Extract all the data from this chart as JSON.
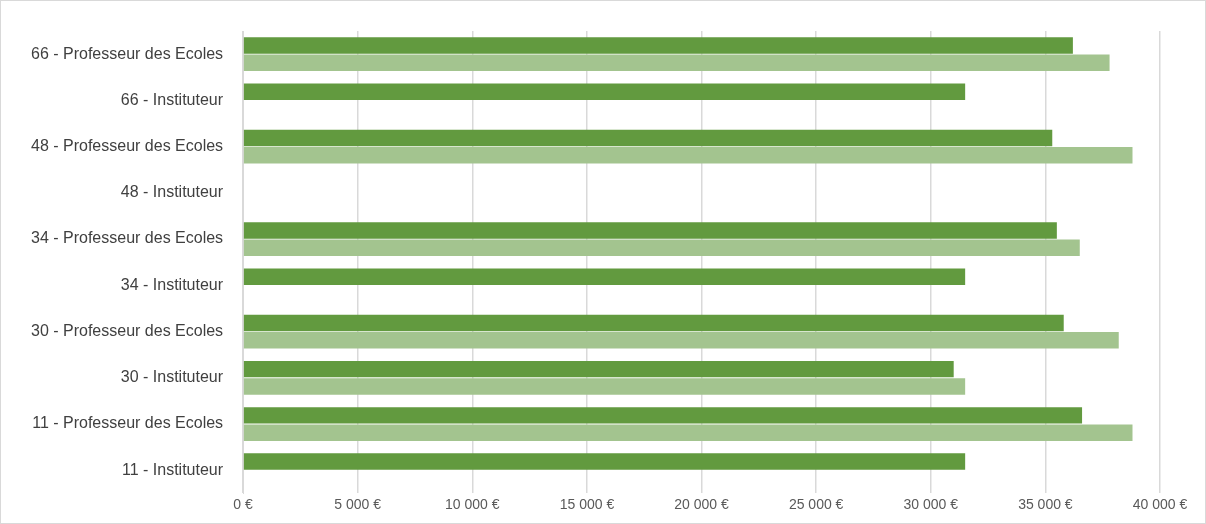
{
  "chart_data": {
    "type": "bar",
    "orientation": "horizontal",
    "categories": [
      "66 - Professeur des Ecoles",
      "66 - Instituteur",
      "48 - Professeur des Ecoles",
      "48 - Instituteur",
      "34 - Professeur des Ecoles",
      "34 - Instituteur",
      "30 - Professeur des Ecoles",
      "30 - Instituteur",
      "11 - Professeur des Ecoles",
      "11 - Instituteur"
    ],
    "series": [
      {
        "color": "#629a3f",
        "values": [
          36200,
          31500,
          35300,
          null,
          35500,
          31500,
          35800,
          31000,
          36600,
          31500
        ]
      },
      {
        "color": "#a3c48f",
        "values": [
          37800,
          null,
          38800,
          null,
          36500,
          null,
          38200,
          31500,
          38800,
          null
        ]
      }
    ],
    "xlim": [
      0,
      40000
    ],
    "xticks": [
      {
        "value": 0,
        "label": "0 €"
      },
      {
        "value": 5000,
        "label": "5 000 €"
      },
      {
        "value": 10000,
        "label": "10 000 €"
      },
      {
        "value": 15000,
        "label": "15 000 €"
      },
      {
        "value": 20000,
        "label": "20 000 €"
      },
      {
        "value": 25000,
        "label": "25 000 €"
      },
      {
        "value": 30000,
        "label": "30 000 €"
      },
      {
        "value": 35000,
        "label": "35 000 €"
      },
      {
        "value": 40000,
        "label": "40 000 €"
      }
    ],
    "grid": "x",
    "legend": false
  }
}
